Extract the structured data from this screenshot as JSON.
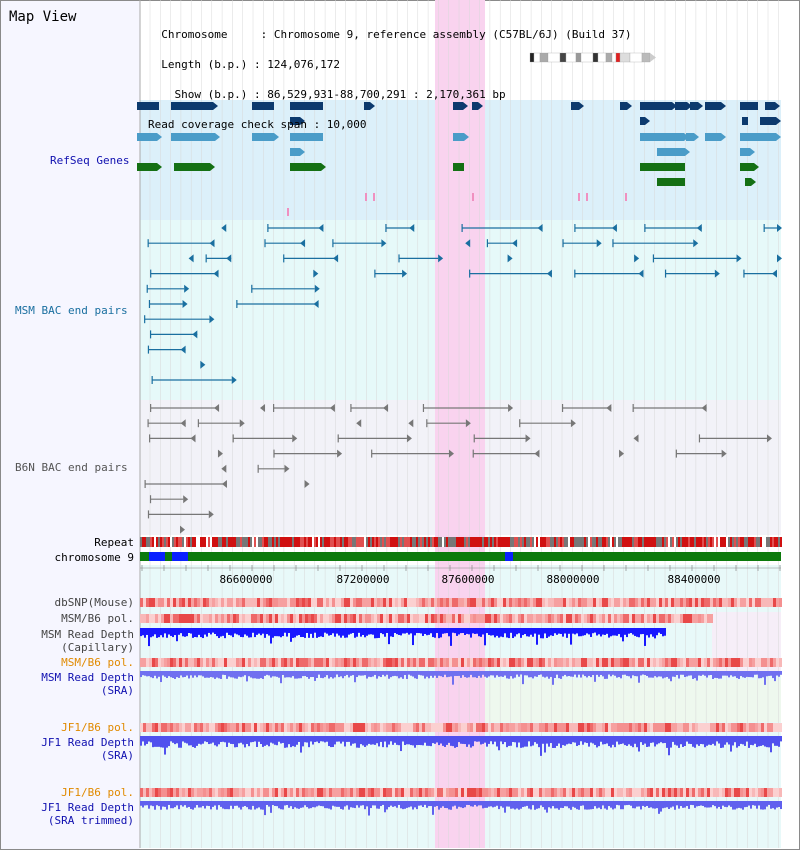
{
  "header": {
    "title": "Map View",
    "info_lines": [
      "  Chromosome     : Chromosome 9, reference assembly (C57BL/6J) (Build 37)",
      "  Length (b.p.) : 124,076,172",
      "    Show (b.p.) : 86,529,931-88,700,291 : 2,170,361 bp",
      "Read coverage check span : 10,000"
    ]
  },
  "tracks": {
    "refseq": {
      "label": "RefSeq Genes",
      "color": "#1010b0"
    },
    "msm_bac": {
      "label": "MSM BAC end pairs",
      "color": "#1a6fa0"
    },
    "b6n_bac": {
      "label": "B6N BAC end pairs",
      "color": "#555555"
    },
    "repeat": {
      "label": "Repeat"
    },
    "chromosome": {
      "label": "chromosome 9"
    },
    "dbsnp": {
      "label": "dbSNP(Mouse)",
      "color": "#444444"
    },
    "msm_b6_pol_cap": {
      "label": "MSM/B6 pol.",
      "color": "#444444"
    },
    "msm_depth_cap": {
      "label": "MSM Read Depth\n(Capillary)",
      "color": "#444444"
    },
    "msm_b6_pol_sra": {
      "label": "MSM/B6 pol.",
      "color": "#e08a00"
    },
    "msm_depth_sra": {
      "label": "MSM Read Depth\n(SRA)",
      "color": "#1010b0"
    },
    "jf1_b6_pol": {
      "label": "JF1/B6 pol.",
      "color": "#e08a00"
    },
    "jf1_depth_sra": {
      "label": "JF1 Read Depth\n(SRA)",
      "color": "#1010b0"
    },
    "jf1_b6_pol_trim": {
      "label": "JF1/B6 pol.",
      "color": "#e08a00"
    },
    "jf1_depth_trim": {
      "label": "JF1 Read Depth\n(SRA trimmed)",
      "color": "#1010b0"
    }
  },
  "axis": {
    "ticks": [
      {
        "label": "86600000",
        "value": 86600000
      },
      {
        "label": "87200000",
        "value": 87200000
      },
      {
        "label": "87600000",
        "value": 87600000
      },
      {
        "label": "88000000",
        "value": 88000000
      },
      {
        "label": "88400000",
        "value": 88400000
      }
    ]
  },
  "view": {
    "start": 86529931,
    "end": 88700291
  },
  "colors": {
    "refseq_bg": "#dcf0fa",
    "msm_bg": "#e6f9f9",
    "b6n_bg": "#f2f2f8",
    "depth_bg": "#e8f9f9",
    "highlight": "#f9d3ef",
    "grid": "#d8d8d8",
    "gene_dark": "#0c3a6e",
    "gene_light": "#4a9cc8",
    "gene_green": "#147014",
    "bac_msm": "#1a6fa0",
    "bac_b6n": "#777777",
    "chrom_green": "#0c7a0c",
    "chrom_blue": "#0a20ff",
    "snp_red": "#e83030",
    "depth_blue": "#3030ff"
  }
}
